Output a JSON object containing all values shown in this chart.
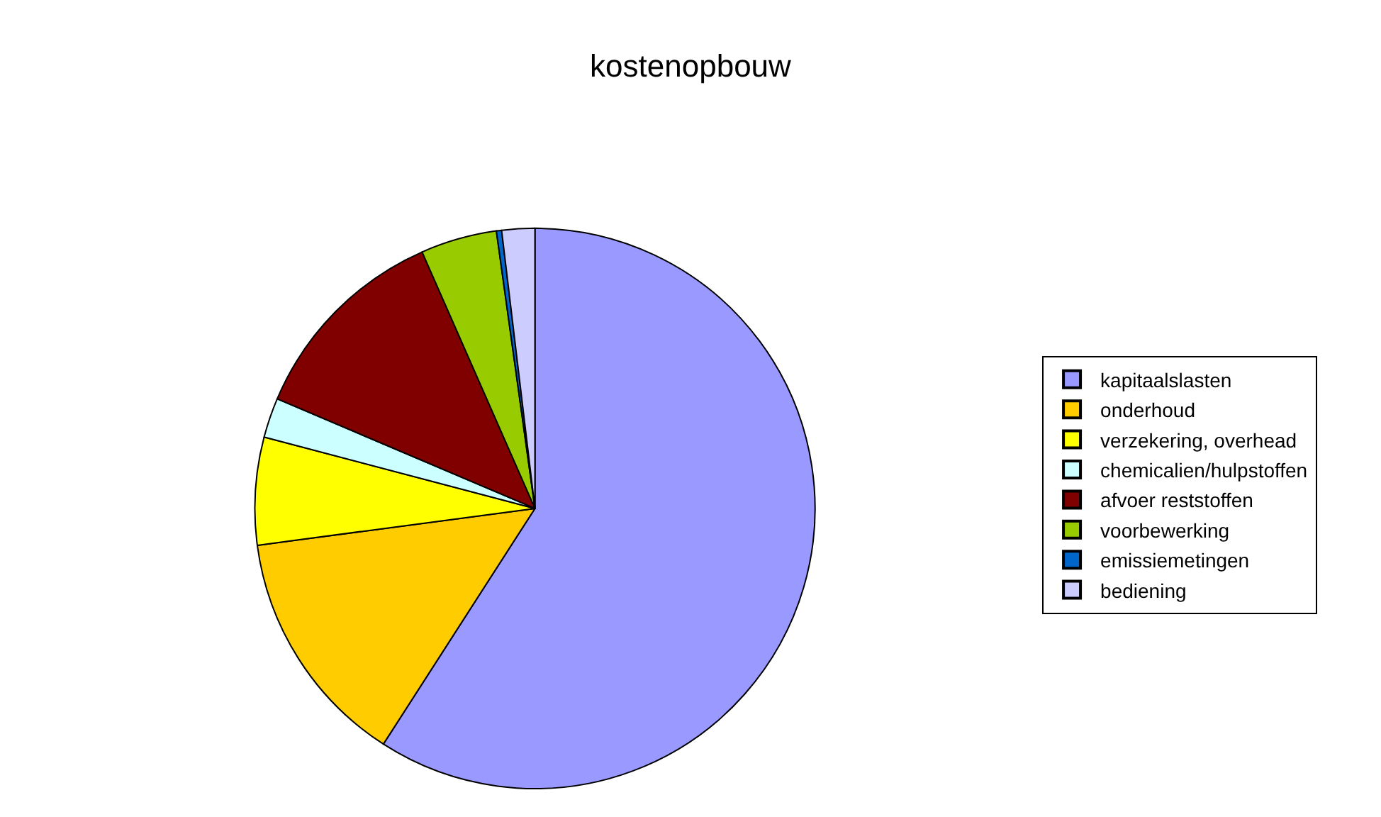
{
  "chart_data": {
    "type": "pie",
    "title": "kostenopbouw",
    "categories": [
      "kapitaalslasten",
      "onderhoud",
      "verzekering, overhead",
      "chemicalien/hulpstoffen",
      "afvoer reststoffen",
      "voorbewerking",
      "emissiemetingen",
      "bediening"
    ],
    "values": [
      59.1,
      13.8,
      6.2,
      2.3,
      12.0,
      4.4,
      0.3,
      1.9
    ],
    "colors": [
      "#9999ff",
      "#ffcc00",
      "#ffff00",
      "#ccffff",
      "#800000",
      "#99cc00",
      "#0066cc",
      "#ccccff"
    ],
    "legend": "right"
  }
}
